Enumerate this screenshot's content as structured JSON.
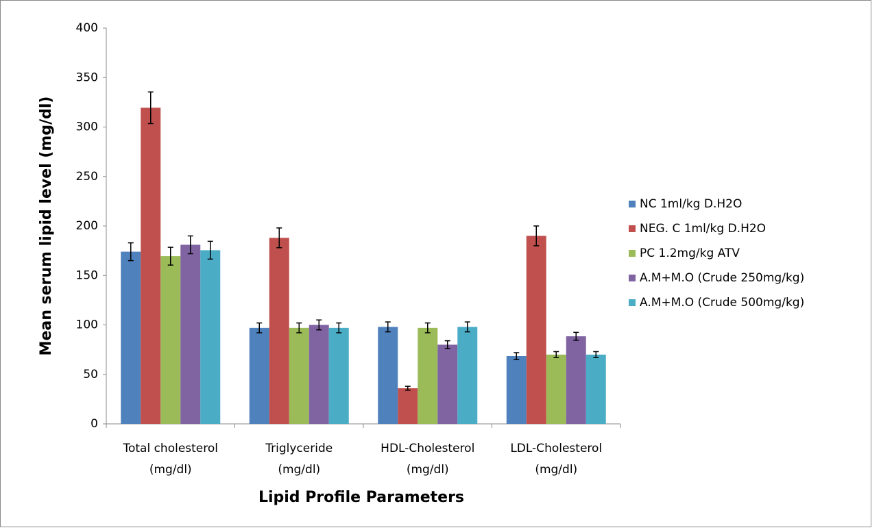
{
  "chart_data": {
    "type": "bar",
    "x_label": "Lipid Profile Parameters",
    "y_label": "Mean serum lipid level (mg/dl)",
    "categories": [
      [
        "Total cholesterol",
        "(mg/dl)"
      ],
      [
        "Triglyceride",
        "(mg/dl)"
      ],
      [
        "HDL-Cholesterol",
        "(mg/dl)"
      ],
      [
        "LDL-Cholesterol",
        "(mg/dl)"
      ]
    ],
    "ylim": [
      0,
      400
    ],
    "yticks": [
      0,
      50,
      100,
      150,
      200,
      250,
      300,
      350,
      400
    ],
    "grid": false,
    "legend": "right",
    "series": [
      {
        "name": "NC 1ml/kg D.H2O",
        "color": "#4f81bd",
        "values": [
          174,
          97,
          98,
          68.5
        ],
        "errors": [
          9,
          5,
          5,
          3.5
        ]
      },
      {
        "name": "NEG. C 1ml/kg D.H2O",
        "color": "#c0504d",
        "values": [
          319.5,
          188,
          36,
          190
        ],
        "errors": [
          16,
          10,
          2,
          10
        ]
      },
      {
        "name": "PC 1.2mg/kg ATV",
        "color": "#9bbb59",
        "values": [
          169.5,
          97,
          97,
          70
        ],
        "errors": [
          9,
          5,
          5,
          3
        ]
      },
      {
        "name": "A.M+M.O (Crude 250mg/kg)",
        "color": "#8064a2",
        "values": [
          181,
          100,
          80,
          88.5
        ],
        "errors": [
          9,
          5,
          4,
          4
        ]
      },
      {
        "name": "A.M+M.O (Crude 500mg/kg)",
        "color": "#4bacc6",
        "values": [
          175.5,
          97,
          98,
          70
        ],
        "errors": [
          9,
          5,
          5,
          3
        ]
      }
    ]
  }
}
